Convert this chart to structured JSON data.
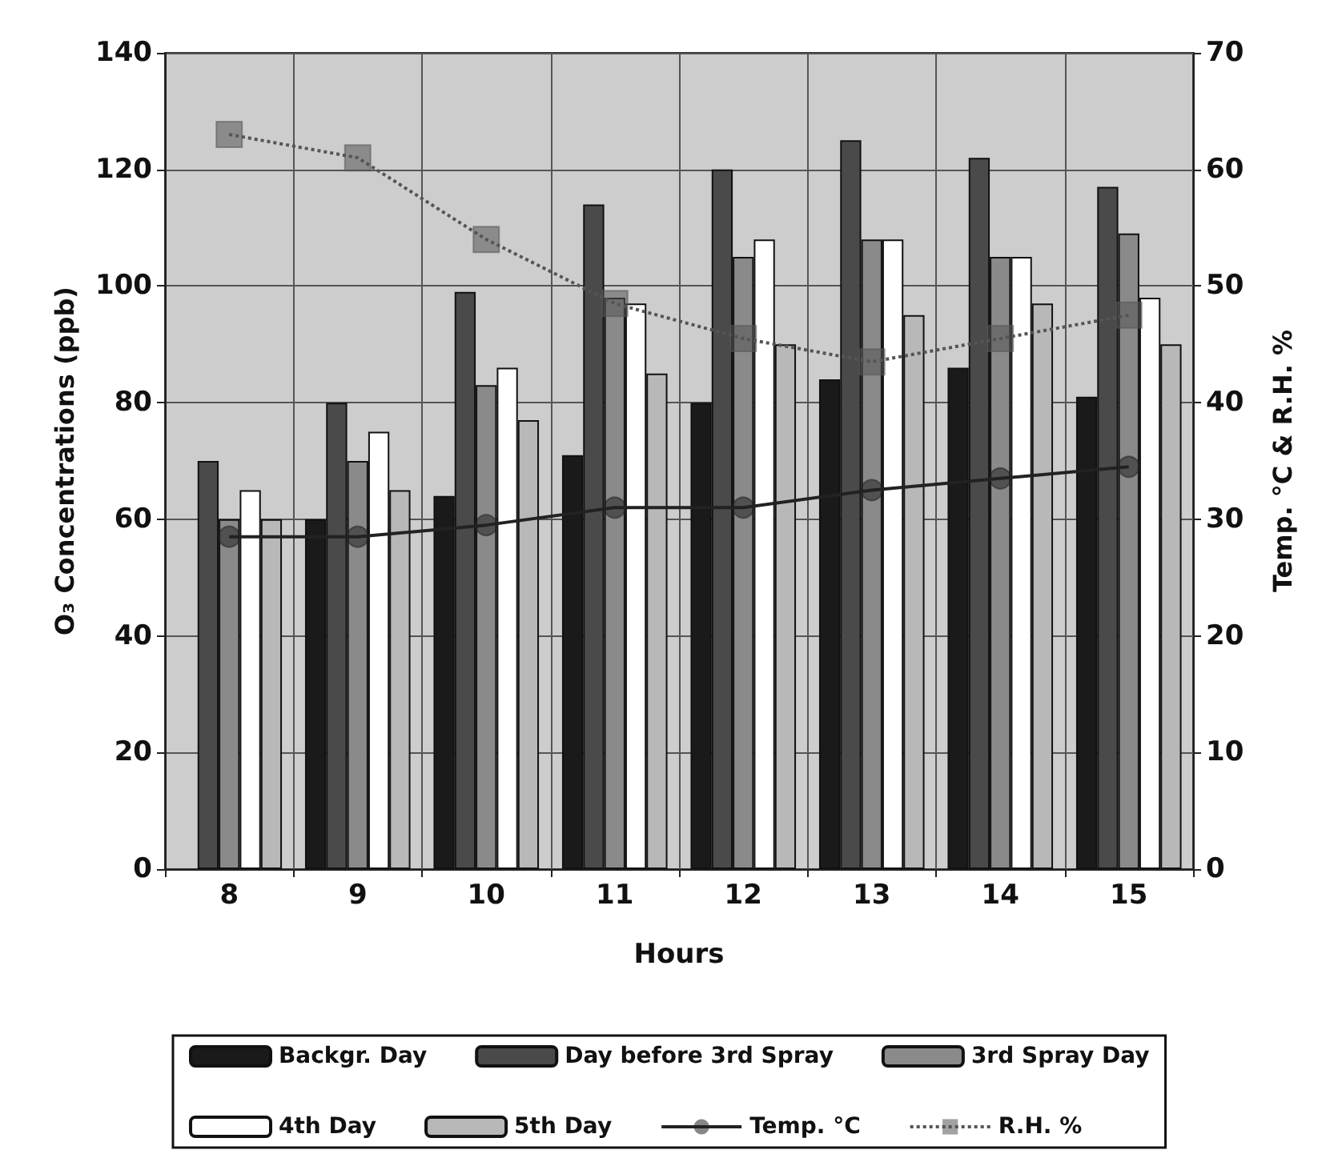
{
  "chart_data": {
    "type": "bar",
    "xlabel": "Hours",
    "ylabel": "O₃ Concentrations (ppb)",
    "y2label": "Temp. °C & R.H. %",
    "categories": [
      "8",
      "9",
      "10",
      "11",
      "12",
      "13",
      "14",
      "15"
    ],
    "series": [
      {
        "name": "Backgr. Day",
        "color": "#1a1a1a",
        "values": [
          null,
          60,
          64,
          71,
          80,
          84,
          86,
          81
        ]
      },
      {
        "name": "Day before 3rd Spray",
        "color": "#4a4a4a",
        "values": [
          70,
          80,
          99,
          114,
          120,
          125,
          122,
          117
        ]
      },
      {
        "name": "3rd Spray Day",
        "color": "#8a8a8a",
        "values": [
          60,
          70,
          83,
          98,
          105,
          108,
          105,
          109
        ]
      },
      {
        "name": "4th Day",
        "color": "#ffffff",
        "values": [
          65,
          75,
          86,
          97,
          108,
          108,
          105,
          98
        ]
      },
      {
        "name": "5th Day",
        "color": "#b8b8b8",
        "values": [
          60,
          65,
          77,
          85,
          90,
          95,
          97,
          90
        ]
      },
      {
        "name": "Temp. °C",
        "type": "line",
        "axis": "y2",
        "color": "#222222",
        "marker": "circle",
        "line_style": "solid",
        "values": [
          28.5,
          28.5,
          29.5,
          31,
          31,
          32.5,
          33.5,
          34.5
        ]
      },
      {
        "name": "R.H. %",
        "type": "line",
        "axis": "y2",
        "color": "#555555",
        "marker": "square",
        "line_style": "dotted",
        "values": [
          63,
          61,
          54,
          48.5,
          45.5,
          43.5,
          45.5,
          47.5
        ]
      }
    ],
    "ylim": [
      0,
      140
    ],
    "yticks": [
      0,
      20,
      40,
      60,
      80,
      100,
      120,
      140
    ],
    "y2lim": [
      0,
      70
    ],
    "y2ticks": [
      0,
      10,
      20,
      30,
      40,
      50,
      60,
      70
    ],
    "grid": true,
    "legend": "bottom"
  }
}
